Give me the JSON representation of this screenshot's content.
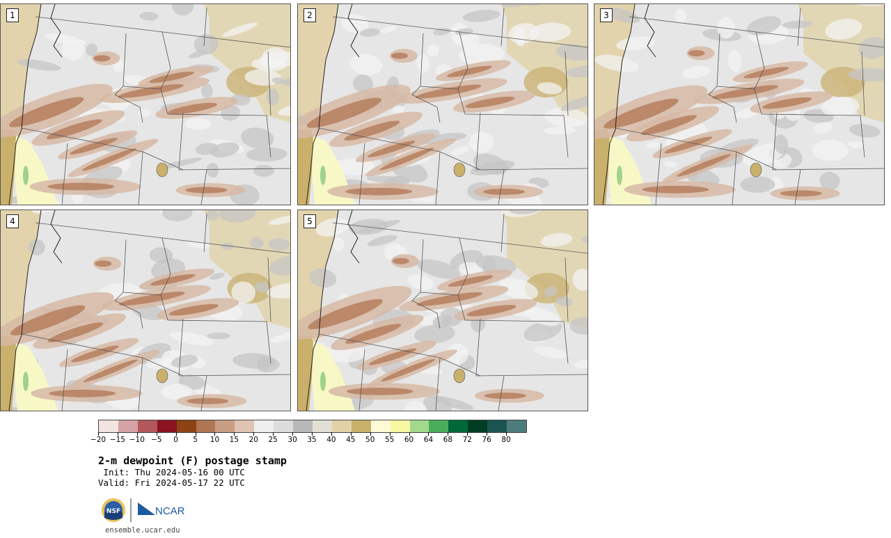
{
  "panels": [
    {
      "label": "1"
    },
    {
      "label": "2"
    },
    {
      "label": "3"
    },
    {
      "label": "4"
    },
    {
      "label": "5"
    }
  ],
  "colorbar": {
    "colors": [
      "#f1e4e2",
      "#d4a3a5",
      "#b2575c",
      "#8a1420",
      "#8d4314",
      "#b07553",
      "#c79e83",
      "#e0c3b2",
      "#eeeeee",
      "#dcdcdc",
      "#b8b8b8",
      "#e2e0d4",
      "#e2d1a6",
      "#c9b06b",
      "#fdfbd6",
      "#f7f7a2",
      "#a3d88d",
      "#49ae5c",
      "#00693a",
      "#003d24",
      "#1a5451",
      "#4e7c7c"
    ],
    "tick_labels": [
      "−20",
      "−15",
      "−10",
      "−5",
      "0",
      "5",
      "10",
      "15",
      "20",
      "25",
      "30",
      "35",
      "40",
      "45",
      "50",
      "55",
      "60",
      "64",
      "68",
      "72",
      "76",
      "80"
    ]
  },
  "title": "2-m dewpoint (F) postage stamp",
  "init_text": " Init: Thu 2024-05-16 00 UTC",
  "valid_text": "Valid: Fri 2024-05-17 22 UTC",
  "logos": {
    "nsf": "NSF",
    "ncar": "NCAR"
  },
  "footer_url": "ensemble.ucar.edu"
}
